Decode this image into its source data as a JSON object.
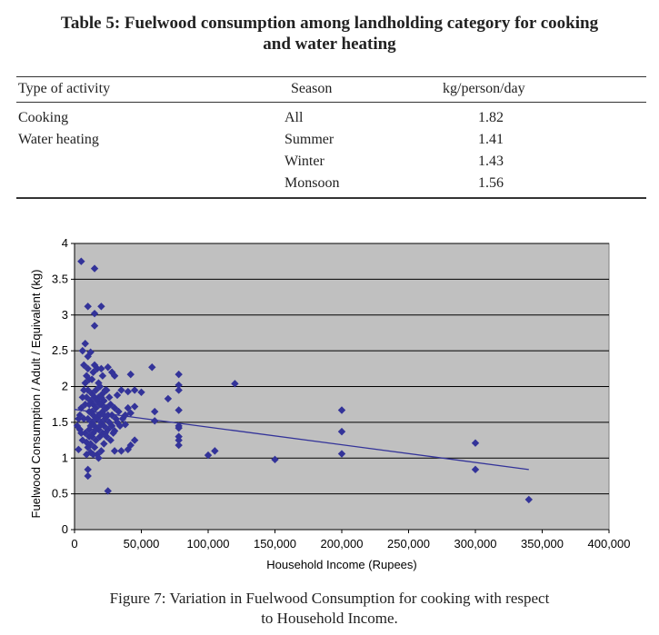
{
  "table": {
    "title_line1": "Table 5: Fuelwood consumption among landholding category for cooking",
    "title_line2": "and water heating",
    "headers": [
      "Type of activity",
      "Season",
      "kg/person/day"
    ],
    "rows": [
      {
        "activity": "Cooking",
        "season": "All",
        "value": "1.82"
      },
      {
        "activity": "Water heating",
        "season": "Summer",
        "value": "1.41"
      },
      {
        "activity": "",
        "season": "Winter",
        "value": "1.43"
      },
      {
        "activity": "",
        "season": "Monsoon",
        "value": "1.56"
      }
    ]
  },
  "figure": {
    "caption_line1": "Figure 7: Variation in Fuelwood Consumption for cooking with respect",
    "caption_line2": "to Household Income."
  },
  "colors": {
    "plot_bg": "#c0c0c0",
    "marker": "#333399",
    "trend": "#333399"
  },
  "chart_data": {
    "type": "scatter",
    "xlabel": "Household Income (Rupees)",
    "ylabel": "Fuelwood Consumption / Adult / Equivalent (kg)",
    "xlim": [
      0,
      400000
    ],
    "ylim": [
      0,
      4
    ],
    "xticks": [
      0,
      50000,
      100000,
      150000,
      200000,
      250000,
      300000,
      350000,
      400000
    ],
    "xtick_labels": [
      "0",
      "50,000",
      "100,000",
      "150,000",
      "200,000",
      "250,000",
      "300,000",
      "350,000",
      "400,000"
    ],
    "yticks": [
      0,
      0.5,
      1,
      1.5,
      2,
      2.5,
      3,
      3.5,
      4
    ],
    "ytick_labels": [
      "0",
      "0.5",
      "1",
      "1.5",
      "2",
      "2.5",
      "3",
      "3.5",
      "4"
    ],
    "grid": "horizontal",
    "trendline": {
      "x": [
        0,
        340000
      ],
      "y": [
        1.68,
        0.84
      ]
    },
    "points": [
      [
        5000,
        3.75
      ],
      [
        15000,
        3.65
      ],
      [
        10000,
        3.12
      ],
      [
        20000,
        3.12
      ],
      [
        15000,
        3.02
      ],
      [
        15000,
        2.85
      ],
      [
        8000,
        2.6
      ],
      [
        6000,
        2.5
      ],
      [
        12000,
        2.48
      ],
      [
        10000,
        2.42
      ],
      [
        25000,
        2.27
      ],
      [
        30000,
        2.15
      ],
      [
        28000,
        2.2
      ],
      [
        42000,
        2.17
      ],
      [
        58000,
        2.27
      ],
      [
        78000,
        2.17
      ],
      [
        120000,
        2.04
      ],
      [
        78000,
        2.02
      ],
      [
        78000,
        1.95
      ],
      [
        50000,
        1.92
      ],
      [
        45000,
        1.95
      ],
      [
        40000,
        1.93
      ],
      [
        35000,
        1.95
      ],
      [
        32000,
        1.88
      ],
      [
        70000,
        1.83
      ],
      [
        60000,
        1.65
      ],
      [
        200000,
        1.67
      ],
      [
        78000,
        1.67
      ],
      [
        60000,
        1.52
      ],
      [
        78000,
        1.45
      ],
      [
        78000,
        1.42
      ],
      [
        78000,
        1.3
      ],
      [
        78000,
        1.25
      ],
      [
        78000,
        1.18
      ],
      [
        45000,
        1.72
      ],
      [
        42000,
        1.63
      ],
      [
        38000,
        1.47
      ],
      [
        30000,
        1.38
      ],
      [
        45000,
        1.25
      ],
      [
        42000,
        1.18
      ],
      [
        40000,
        1.12
      ],
      [
        35000,
        1.1
      ],
      [
        30000,
        1.1
      ],
      [
        200000,
        1.37
      ],
      [
        200000,
        1.06
      ],
      [
        300000,
        1.21
      ],
      [
        300000,
        0.84
      ],
      [
        340000,
        0.42
      ],
      [
        150000,
        0.98
      ],
      [
        100000,
        1.04
      ],
      [
        105000,
        1.1
      ],
      [
        10000,
        0.84
      ],
      [
        10000,
        0.75
      ],
      [
        25000,
        0.54
      ],
      [
        3000,
        1.12
      ],
      [
        2000,
        1.45
      ],
      [
        4000,
        1.6
      ],
      [
        5000,
        1.7
      ],
      [
        6000,
        1.85
      ],
      [
        7000,
        1.95
      ],
      [
        8000,
        2.05
      ],
      [
        8000,
        1.35
      ],
      [
        9000,
        1.22
      ],
      [
        9000,
        2.15
      ],
      [
        10000,
        2.25
      ],
      [
        10000,
        1.55
      ],
      [
        11000,
        1.65
      ],
      [
        11000,
        1.4
      ],
      [
        11000,
        1.3
      ],
      [
        12000,
        1.8
      ],
      [
        12000,
        1.2
      ],
      [
        12000,
        1.08
      ],
      [
        13000,
        1.5
      ],
      [
        13000,
        1.9
      ],
      [
        13000,
        2.1
      ],
      [
        14000,
        1.75
      ],
      [
        14000,
        1.35
      ],
      [
        14000,
        1.6
      ],
      [
        15000,
        2.3
      ],
      [
        15000,
        1.45
      ],
      [
        15000,
        1.15
      ],
      [
        16000,
        1.7
      ],
      [
        16000,
        1.95
      ],
      [
        16000,
        1.25
      ],
      [
        17000,
        2.25
      ],
      [
        17000,
        1.55
      ],
      [
        17000,
        1.05
      ],
      [
        18000,
        1.85
      ],
      [
        18000,
        1.4
      ],
      [
        18000,
        1.0
      ],
      [
        19000,
        2.0
      ],
      [
        19000,
        1.6
      ],
      [
        19000,
        1.3
      ],
      [
        20000,
        1.75
      ],
      [
        20000,
        1.5
      ],
      [
        20000,
        1.1
      ],
      [
        21000,
        2.15
      ],
      [
        21000,
        1.65
      ],
      [
        21000,
        1.35
      ],
      [
        22000,
        1.8
      ],
      [
        22000,
        1.45
      ],
      [
        22000,
        1.2
      ],
      [
        23000,
        1.95
      ],
      [
        23000,
        1.55
      ],
      [
        24000,
        1.7
      ],
      [
        24000,
        1.3
      ],
      [
        25000,
        1.6
      ],
      [
        25000,
        1.4
      ],
      [
        26000,
        1.85
      ],
      [
        26000,
        1.5
      ],
      [
        27000,
        1.75
      ],
      [
        27000,
        1.25
      ],
      [
        28000,
        1.6
      ],
      [
        28000,
        1.45
      ],
      [
        29000,
        1.35
      ],
      [
        30000,
        1.7
      ],
      [
        31000,
        1.55
      ],
      [
        32000,
        1.5
      ],
      [
        33000,
        1.65
      ],
      [
        34000,
        1.45
      ],
      [
        36000,
        1.55
      ],
      [
        38000,
        1.6
      ],
      [
        40000,
        1.7
      ],
      [
        4000,
        1.4
      ],
      [
        6000,
        1.25
      ],
      [
        7000,
        1.55
      ],
      [
        8000,
        1.75
      ],
      [
        9000,
        1.85
      ],
      [
        10000,
        1.95
      ],
      [
        10000,
        1.15
      ],
      [
        11000,
        2.1
      ],
      [
        12000,
        1.45
      ],
      [
        13000,
        1.65
      ],
      [
        14000,
        2.2
      ],
      [
        15000,
        1.85
      ],
      [
        16000,
        1.4
      ],
      [
        17000,
        1.8
      ],
      [
        18000,
        1.6
      ],
      [
        19000,
        1.45
      ],
      [
        20000,
        2.25
      ],
      [
        21000,
        1.9
      ],
      [
        22000,
        1.6
      ],
      [
        23000,
        1.35
      ],
      [
        24000,
        1.95
      ],
      [
        7000,
        2.3
      ],
      [
        9000,
        1.05
      ],
      [
        11000,
        1.75
      ],
      [
        13000,
        1.3
      ],
      [
        16000,
        1.55
      ],
      [
        18000,
        2.05
      ],
      [
        20000,
        1.85
      ],
      [
        3000,
        1.55
      ],
      [
        5000,
        1.35
      ],
      [
        14000,
        1.05
      ],
      [
        19000,
        1.75
      ],
      [
        23000,
        1.7
      ]
    ]
  }
}
